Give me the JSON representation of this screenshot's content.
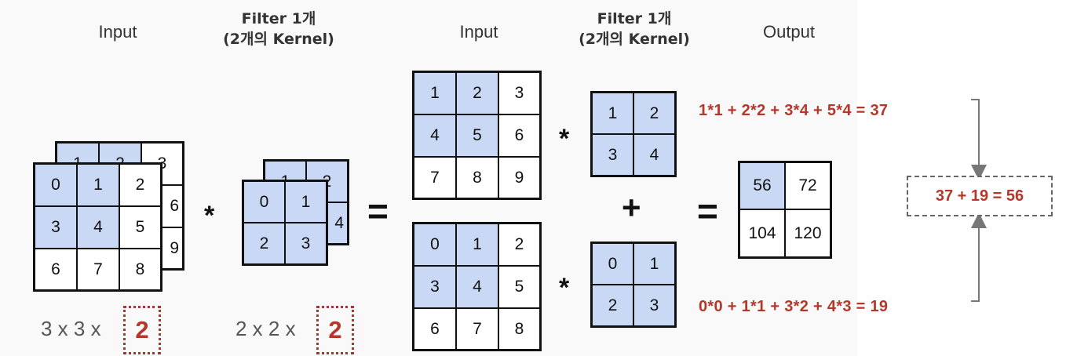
{
  "labels": {
    "input_left": "Input",
    "filter_left_line1": "Filter 1개",
    "filter_left_line2": "(2개의 Kernel)",
    "input_mid": "Input",
    "filter_mid_line1": "Filter 1개",
    "filter_mid_line2": "(2개의 Kernel)",
    "output": "Output"
  },
  "operators": {
    "conv": "*",
    "equals": "=",
    "plus": "+"
  },
  "dimensions": {
    "input_prefix": "3 x 3 x",
    "input_depth": "2",
    "filter_prefix": "2 x 2 x",
    "filter_depth": "2"
  },
  "input_channels": [
    [
      "1",
      "2",
      "3",
      "4",
      "5",
      "6",
      "7",
      "8",
      "9"
    ],
    [
      "0",
      "1",
      "2",
      "3",
      "4",
      "5",
      "6",
      "7",
      "8"
    ]
  ],
  "kernels": [
    [
      "1",
      "2",
      "3",
      "4"
    ],
    [
      "0",
      "1",
      "2",
      "3"
    ]
  ],
  "output_values": [
    "56",
    "72",
    "104",
    "120"
  ],
  "formulas": {
    "top": "1*1 + 2*2 + 3*4 + 5*4 = 37",
    "bottom": "0*0 + 1*1 + 3*2 + 4*3 = 19",
    "sum": "37 + 19 = 56"
  },
  "colors": {
    "highlight": "#c9d8f4",
    "accent": "#b5372a",
    "panel": "#f9f9f9"
  }
}
